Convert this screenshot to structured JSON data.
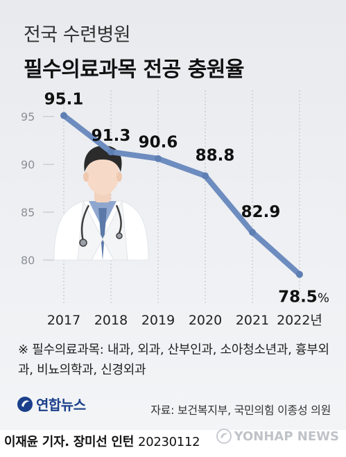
{
  "header": {
    "subtitle": "전국 수련병원",
    "title": "필수의료과목 전공 충원율"
  },
  "chart_data": {
    "type": "line",
    "x": [
      "2017",
      "2018",
      "2019",
      "2020",
      "2021",
      "2022년"
    ],
    "y_ticks": [
      "95",
      "90",
      "85",
      "80"
    ],
    "ylim": [
      77.5,
      97.5
    ],
    "series": [
      {
        "values": [
          95.1,
          91.3,
          90.6,
          88.8,
          82.9,
          78.5
        ],
        "labels": [
          "95.1",
          "91.3",
          "90.6",
          "88.8",
          "82.9",
          "78.5"
        ]
      }
    ],
    "last_label_unit": "%",
    "grid": "vertical-dashed",
    "line_color": "#6d8cbf"
  },
  "note": {
    "text": "※ 필수의료과목: 내과, 외과, 산부인과, 소아청소년과, 흉부외과, 비뇨의학과, 신경외과"
  },
  "footer": {
    "logo": "연합뉴스",
    "source": "자료: 보건복지부, 국민의힘 이종성 의원",
    "credit_name": "이재윤 기자. 장미선 인턴",
    "credit_date": "20230112",
    "watermark": "YONHAP NEWS"
  },
  "colors": {
    "background": "#eceef1",
    "line": "#6d8cbf",
    "logo": "#1b3f8b"
  }
}
